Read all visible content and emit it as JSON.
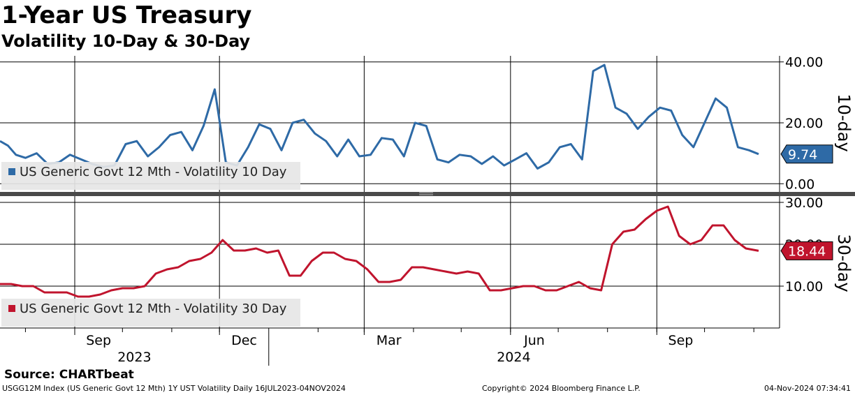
{
  "title": "1-Year US Treasury",
  "subtitle": "Volatility 10-Day & 30-Day",
  "source": "Source: CHARTbeat",
  "footer": {
    "left": "USGG12M Index (US Generic Govt 12 Mth) 1Y UST Volatility  Daily 16JUL2023-04NOV2024",
    "middle": "Copyright© 2024 Bloomberg Finance L.P.",
    "right": "04-Nov-2024 07:34:41"
  },
  "colors": {
    "series10": "#2e6aa6",
    "series30": "#c0142d",
    "grid": "#000000",
    "legend_bg": "#e6e6e6"
  },
  "chart_data": [
    {
      "type": "line",
      "panel": "top",
      "ylabel": "10-day",
      "ylim": [
        -2,
        42
      ],
      "yticks": [
        0,
        20,
        40
      ],
      "ytick_labels": [
        "0.00",
        "20.00",
        "40.00"
      ],
      "last_value_label": "9.74",
      "legend": "US Generic Govt 12 Mth - Volatility 10 Day",
      "legend_placement": "bottom-left",
      "grid": true,
      "series": [
        {
          "name": "US Generic Govt 12 Mth - Volatility 10 Day",
          "color": "#2e6aa6",
          "x": [
            "2023-07-16",
            "2023-07-21",
            "2023-07-26",
            "2023-08-01",
            "2023-08-08",
            "2023-08-15",
            "2023-08-22",
            "2023-08-29",
            "2023-09-05",
            "2023-09-12",
            "2023-09-19",
            "2023-09-26",
            "2023-10-03",
            "2023-10-10",
            "2023-10-17",
            "2023-10-24",
            "2023-10-31",
            "2023-11-07",
            "2023-11-14",
            "2023-11-21",
            "2023-11-28",
            "2023-12-05",
            "2023-12-12",
            "2023-12-19",
            "2023-12-26",
            "2024-01-02",
            "2024-01-09",
            "2024-01-16",
            "2024-01-23",
            "2024-01-30",
            "2024-02-06",
            "2024-02-13",
            "2024-02-20",
            "2024-02-27",
            "2024-03-05",
            "2024-03-12",
            "2024-03-19",
            "2024-03-26",
            "2024-04-02",
            "2024-04-09",
            "2024-04-16",
            "2024-04-23",
            "2024-04-30",
            "2024-05-07",
            "2024-05-14",
            "2024-05-21",
            "2024-05-28",
            "2024-06-04",
            "2024-06-11",
            "2024-06-18",
            "2024-06-25",
            "2024-07-02",
            "2024-07-09",
            "2024-07-16",
            "2024-07-23",
            "2024-07-30",
            "2024-08-06",
            "2024-08-13",
            "2024-08-20",
            "2024-08-27",
            "2024-09-03",
            "2024-09-10",
            "2024-09-17",
            "2024-09-24",
            "2024-10-01",
            "2024-10-08",
            "2024-10-15",
            "2024-10-22",
            "2024-10-29",
            "2024-11-04"
          ],
          "values": [
            14.0,
            12.5,
            9.5,
            8.5,
            10.0,
            6.5,
            7.0,
            9.5,
            8.0,
            6.5,
            5.5,
            6.0,
            13.0,
            14.0,
            9.0,
            12.0,
            16.0,
            17.0,
            11.0,
            19.0,
            31.0,
            7.0,
            6.0,
            12.0,
            19.5,
            18.0,
            11.0,
            20.0,
            21.0,
            16.5,
            14.0,
            9.0,
            14.5,
            9.0,
            9.5,
            15.0,
            14.5,
            9.0,
            20.0,
            19.0,
            8.0,
            7.0,
            9.5,
            9.0,
            6.5,
            9.0,
            6.0,
            8.0,
            10.0,
            5.0,
            7.0,
            12.0,
            13.0,
            8.0,
            37.0,
            39.0,
            25.0,
            23.0,
            18.0,
            22.0,
            25.0,
            24.0,
            16.0,
            12.0,
            20.0,
            28.0,
            25.0,
            12.0,
            11.0,
            9.74
          ]
        }
      ]
    },
    {
      "type": "line",
      "panel": "bottom",
      "ylabel": "30-day",
      "ylim": [
        0,
        31
      ],
      "yticks": [
        10,
        20,
        30
      ],
      "ytick_labels": [
        "10.00",
        "20.00",
        "30.00"
      ],
      "last_value_label": "18.44",
      "legend": "US Generic Govt 12 Mth - Volatility 30 Day",
      "legend_placement": "bottom-left",
      "grid": true,
      "series": [
        {
          "name": "US Generic Govt 12 Mth - Volatility 30 Day",
          "color": "#c0142d",
          "x": [
            "2023-07-16",
            "2023-07-23",
            "2023-07-30",
            "2023-08-06",
            "2023-08-13",
            "2023-08-20",
            "2023-08-27",
            "2023-09-03",
            "2023-09-10",
            "2023-09-17",
            "2023-09-24",
            "2023-10-01",
            "2023-10-08",
            "2023-10-15",
            "2023-10-22",
            "2023-10-29",
            "2023-11-05",
            "2023-11-12",
            "2023-11-19",
            "2023-11-26",
            "2023-12-03",
            "2023-12-10",
            "2023-12-17",
            "2023-12-24",
            "2023-12-31",
            "2024-01-07",
            "2024-01-14",
            "2024-01-21",
            "2024-01-28",
            "2024-02-04",
            "2024-02-11",
            "2024-02-18",
            "2024-02-25",
            "2024-03-03",
            "2024-03-10",
            "2024-03-17",
            "2024-03-24",
            "2024-03-31",
            "2024-04-07",
            "2024-04-14",
            "2024-04-21",
            "2024-04-28",
            "2024-05-05",
            "2024-05-12",
            "2024-05-19",
            "2024-05-26",
            "2024-06-02",
            "2024-06-09",
            "2024-06-16",
            "2024-06-23",
            "2024-06-30",
            "2024-07-07",
            "2024-07-14",
            "2024-07-21",
            "2024-07-28",
            "2024-08-04",
            "2024-08-11",
            "2024-08-18",
            "2024-08-25",
            "2024-09-01",
            "2024-09-08",
            "2024-09-15",
            "2024-09-22",
            "2024-09-29",
            "2024-10-06",
            "2024-10-13",
            "2024-10-20",
            "2024-10-27",
            "2024-11-04"
          ],
          "values": [
            10.5,
            10.5,
            10.0,
            10.0,
            8.5,
            8.5,
            8.5,
            7.5,
            7.5,
            8.0,
            9.0,
            9.5,
            9.5,
            10.0,
            13.0,
            14.0,
            14.5,
            16.0,
            16.5,
            18.0,
            21.0,
            18.5,
            18.5,
            19.0,
            18.0,
            18.5,
            12.5,
            12.5,
            16.0,
            18.0,
            18.0,
            16.5,
            16.0,
            14.0,
            11.0,
            11.0,
            11.5,
            14.5,
            14.5,
            14.0,
            13.5,
            13.0,
            13.5,
            13.0,
            9.0,
            9.0,
            9.5,
            10.0,
            10.0,
            9.0,
            9.0,
            10.0,
            11.0,
            9.5,
            9.0,
            20.0,
            23.0,
            23.5,
            26.0,
            28.0,
            29.0,
            22.0,
            20.0,
            21.0,
            24.5,
            24.5,
            21.0,
            19.0,
            18.44
          ]
        }
      ]
    }
  ],
  "x_axis": {
    "start": "2023-07-16",
    "end": "2024-11-04",
    "month_ticks": [
      "2023-07-01",
      "2023-08-01",
      "2023-09-01",
      "2023-10-01",
      "2023-11-01",
      "2023-12-01",
      "2024-01-01",
      "2024-02-01",
      "2024-03-01",
      "2024-04-01",
      "2024-05-01",
      "2024-06-01",
      "2024-07-01",
      "2024-08-01",
      "2024-09-01",
      "2024-10-01",
      "2024-11-01"
    ],
    "labeled_ticks": [
      {
        "date": "2023-09-01",
        "label": "Sep"
      },
      {
        "date": "2023-12-01",
        "label": "Dec"
      },
      {
        "date": "2024-03-01",
        "label": "Mar"
      },
      {
        "date": "2024-06-01",
        "label": "Jun"
      },
      {
        "date": "2024-09-01",
        "label": "Sep"
      }
    ],
    "years": [
      {
        "label": "2023",
        "from": "2023-07-16",
        "to": "2024-01-01"
      },
      {
        "label": "2024",
        "from": "2024-01-01",
        "to": "2024-11-04"
      }
    ]
  }
}
